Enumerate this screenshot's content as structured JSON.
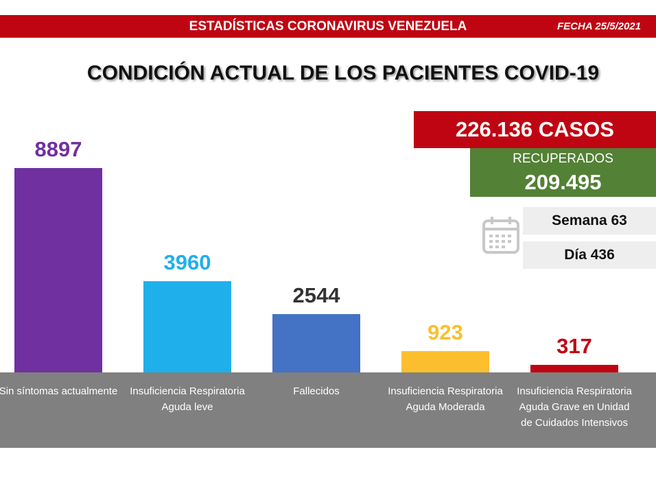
{
  "header": {
    "title": "ESTADÍSTICAS CORONAVIRUS VENEZUELA",
    "date": "FECHA 25/5/2021"
  },
  "summary": {
    "cases": "226.136 CASOS",
    "recovered_label": "RECUPERADOS",
    "recovered": "209.495",
    "week": "Semana 63",
    "day": "Día 436"
  },
  "chart_data": {
    "type": "bar",
    "title": "CONDICIÓN ACTUAL DE LOS PACIENTES COVID-19",
    "categories": [
      "Sin síntomas actualmente",
      "Insuficiencia Respiratoria Aguda leve",
      "Fallecidos",
      "Insuficiencia Respiratoria Aguda Moderada",
      "Insuficiencia Respiratoria Aguda Grave en Unidad de Cuidados Intensivos"
    ],
    "values": [
      8897,
      3960,
      2544,
      923,
      317
    ],
    "colors": [
      "#7030a0",
      "#1fb0ec",
      "#4472c4",
      "#fbbf2d",
      "#c00512"
    ],
    "label_colors": [
      "#7030a0",
      "#1fb0ec",
      "#333333",
      "#fbbf2d",
      "#c00512"
    ]
  }
}
